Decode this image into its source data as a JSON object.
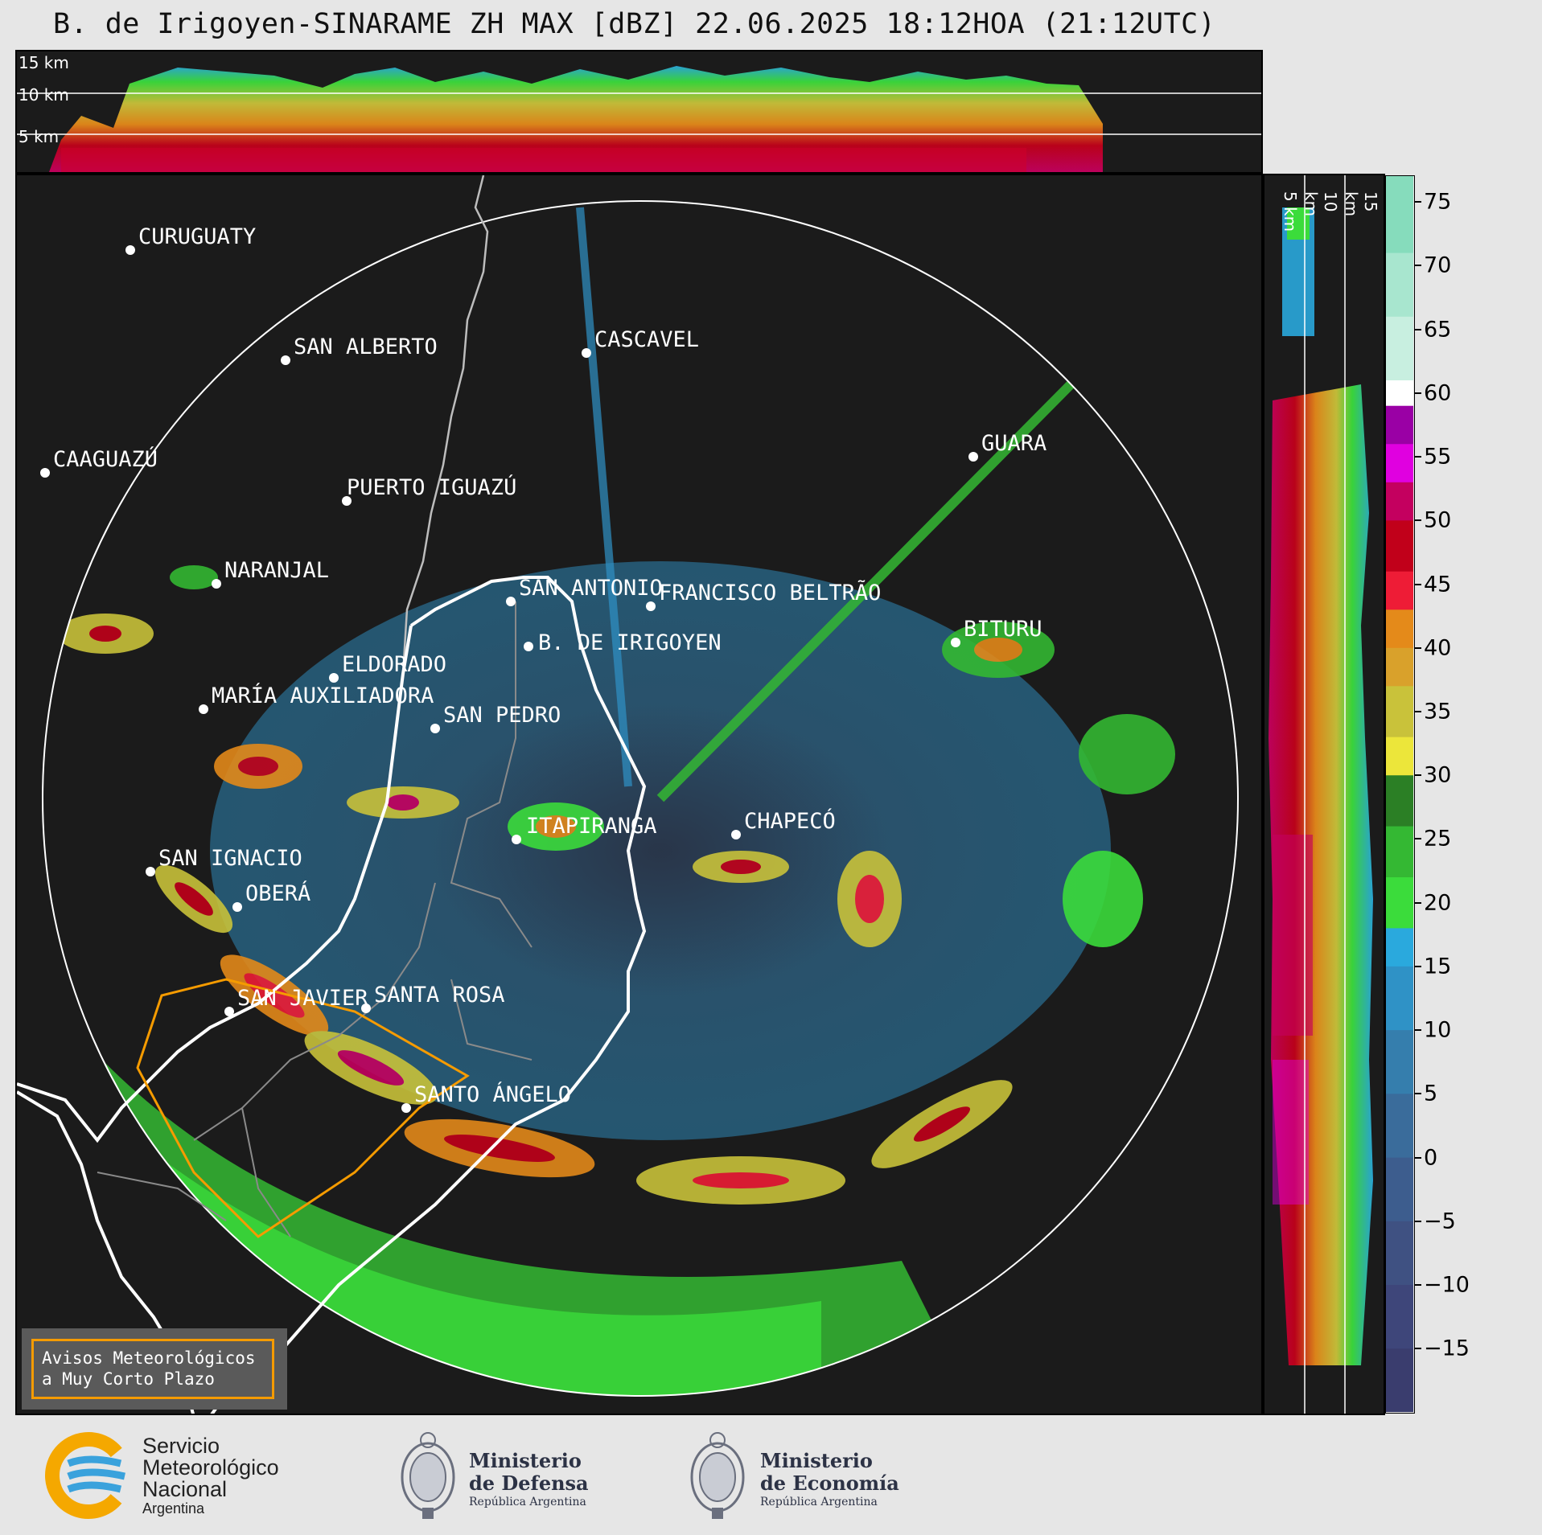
{
  "title": "B. de Irigoyen-SINARAME ZH MAX [dBZ] 22.06.2025 18:12HOA (21:12UTC)",
  "top_panel": {
    "altitude_labels": [
      "15 km",
      "10 km",
      "5 km"
    ]
  },
  "side_panel": {
    "altitude_labels": [
      "5 km",
      "10 km",
      "15 km"
    ]
  },
  "colorbar": {
    "units": "dBZ",
    "ticks": [
      "75",
      "70",
      "65",
      "60",
      "55",
      "50",
      "45",
      "40",
      "35",
      "30",
      "25",
      "20",
      "15",
      "10",
      "5",
      "0",
      "−5",
      "−10",
      "−15"
    ],
    "tick_values": [
      75,
      70,
      65,
      60,
      55,
      50,
      45,
      40,
      35,
      30,
      25,
      20,
      15,
      10,
      5,
      0,
      -5,
      -10,
      -15
    ],
    "range": [
      -20,
      77
    ],
    "bands": [
      {
        "from": -20,
        "to": -15,
        "color": "#3a3d6e"
      },
      {
        "from": -15,
        "to": -10,
        "color": "#3e467a"
      },
      {
        "from": -10,
        "to": -5,
        "color": "#3f5182"
      },
      {
        "from": -5,
        "to": 0,
        "color": "#3d5d8e"
      },
      {
        "from": 0,
        "to": 5,
        "color": "#3a6c9b"
      },
      {
        "from": 5,
        "to": 10,
        "color": "#357ead"
      },
      {
        "from": 10,
        "to": 15,
        "color": "#2f92c6"
      },
      {
        "from": 15,
        "to": 18,
        "color": "#2aa9dd"
      },
      {
        "from": 18,
        "to": 22,
        "color": "#3bdc3b"
      },
      {
        "from": 22,
        "to": 26,
        "color": "#34b833"
      },
      {
        "from": 26,
        "to": 30,
        "color": "#2b7f25"
      },
      {
        "from": 30,
        "to": 33,
        "color": "#ece63a"
      },
      {
        "from": 33,
        "to": 37,
        "color": "#c9c23a"
      },
      {
        "from": 37,
        "to": 40,
        "color": "#d9a12b"
      },
      {
        "from": 40,
        "to": 43,
        "color": "#e48a1a"
      },
      {
        "from": 43,
        "to": 46,
        "color": "#ee1c36"
      },
      {
        "from": 46,
        "to": 50,
        "color": "#c1001a"
      },
      {
        "from": 50,
        "to": 53,
        "color": "#c4005f"
      },
      {
        "from": 53,
        "to": 56,
        "color": "#e000e0"
      },
      {
        "from": 56,
        "to": 59,
        "color": "#9a00a5"
      },
      {
        "from": 59,
        "to": 61,
        "color": "#ffffff"
      },
      {
        "from": 61,
        "to": 66,
        "color": "#c8efe0"
      },
      {
        "from": 66,
        "to": 71,
        "color": "#a8e6cf"
      },
      {
        "from": 71,
        "to": 77,
        "color": "#86dcbc"
      }
    ]
  },
  "cities": [
    {
      "name": "CURUGUATY"
    },
    {
      "name": "SAN ALBERTO"
    },
    {
      "name": "CASCAVEL"
    },
    {
      "name": "CAAGUAZÚ"
    },
    {
      "name": "GUARA"
    },
    {
      "name": "PUERTO IGUAZÚ"
    },
    {
      "name": "NARANJAL"
    },
    {
      "name": "SAN ANTONIO"
    },
    {
      "name": "FRANCISCO BELTRÃO"
    },
    {
      "name": "BITURU"
    },
    {
      "name": "B. DE IRIGOYEN"
    },
    {
      "name": "ELDORADO"
    },
    {
      "name": "MARÍA AUXILIADORA"
    },
    {
      "name": "SAN PEDRO"
    },
    {
      "name": "ITAPIRANGA"
    },
    {
      "name": "CHAPECÓ"
    },
    {
      "name": "SAN IGNACIO"
    },
    {
      "name": "OBERÁ"
    },
    {
      "name": "SAN JAVIER"
    },
    {
      "name": "SANTA ROSA"
    },
    {
      "name": "SANTO ÁNGELO"
    }
  ],
  "legend": {
    "line1": "Avisos Meteorológicos",
    "line2": "a Muy Corto Plazo",
    "color": "#f59b00"
  },
  "logos": {
    "smn": {
      "line1": "Servicio",
      "line2": "Meteorológico",
      "line3": "Nacional",
      "line4": "Argentina"
    },
    "defensa": {
      "line1": "Ministerio",
      "line2": "de Defensa",
      "line3": "República Argentina"
    },
    "economia": {
      "line1": "Ministerio",
      "line2": "de Economía",
      "line3": "República Argentina"
    }
  }
}
